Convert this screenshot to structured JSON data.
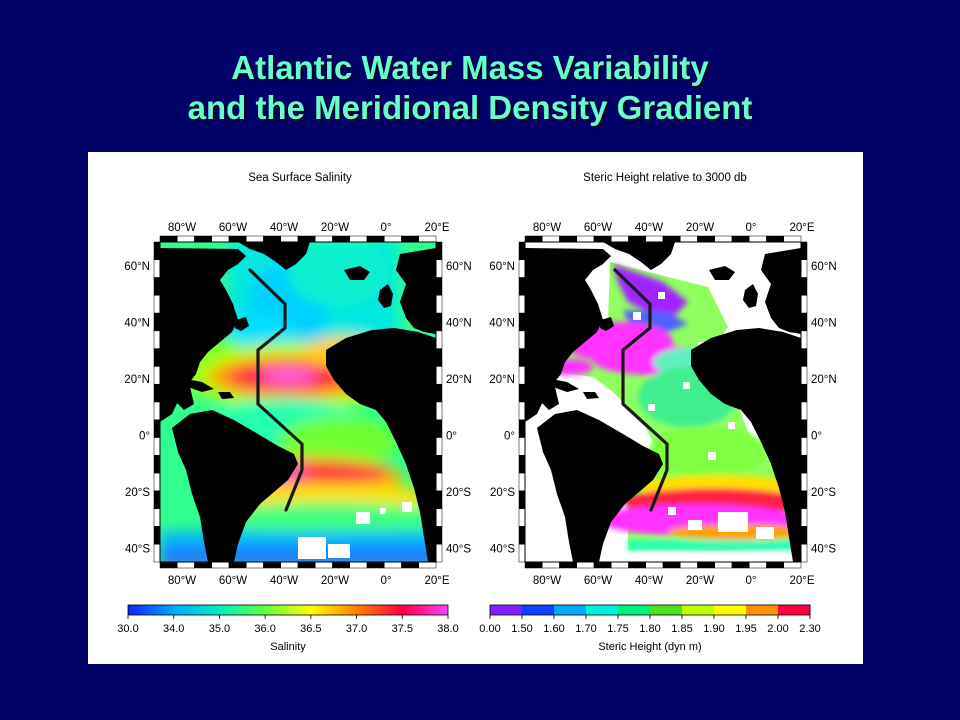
{
  "slide": {
    "title_line1": "Atlantic Water Mass Variability",
    "title_line2": "and the Meridional Density Gradient"
  },
  "colors": {
    "background": "#000066",
    "title": "#66ffcc",
    "land": "#000000",
    "section_line": "#1a1a1a"
  },
  "maps": [
    {
      "name": "salinity",
      "title": "Sea Surface Salinity",
      "lon_labels": [
        "80°W",
        "60°W",
        "40°W",
        "20°W",
        "0°",
        "20°E"
      ],
      "lat_labels": [
        "60°N",
        "40°N",
        "20°N",
        "0°",
        "20°S",
        "40°S"
      ],
      "colorbar": {
        "ticks": [
          "30.0",
          "34.0",
          "35.0",
          "36.0",
          "36.5",
          "37.0",
          "37.5",
          "38.0"
        ],
        "label": "Salinity",
        "colors": [
          "#1020ff",
          "#00a8ff",
          "#00f0c0",
          "#60ff40",
          "#ffff00",
          "#ff8000",
          "#ff0040",
          "#ff40ff"
        ]
      }
    },
    {
      "name": "steric-height",
      "title": "Steric Height relative to 3000 db",
      "lon_labels": [
        "80°W",
        "60°W",
        "40°W",
        "20°W",
        "0°",
        "20°E"
      ],
      "lat_labels": [
        "60°N",
        "40°N",
        "20°N",
        "0°",
        "20°S",
        "40°S"
      ],
      "colorbar": {
        "ticks": [
          "0.00",
          "1.50",
          "1.60",
          "1.70",
          "1.75",
          "1.80",
          "1.85",
          "1.90",
          "1.95",
          "2.00",
          "2.30"
        ],
        "label": "Steric Height (dyn m)",
        "colors": [
          "#8020ff",
          "#1040ff",
          "#00a8ff",
          "#00f0e0",
          "#00f080",
          "#50e020",
          "#c0ff00",
          "#ffff00",
          "#ff9000",
          "#ff0040",
          "#ff20ff"
        ]
      }
    }
  ]
}
